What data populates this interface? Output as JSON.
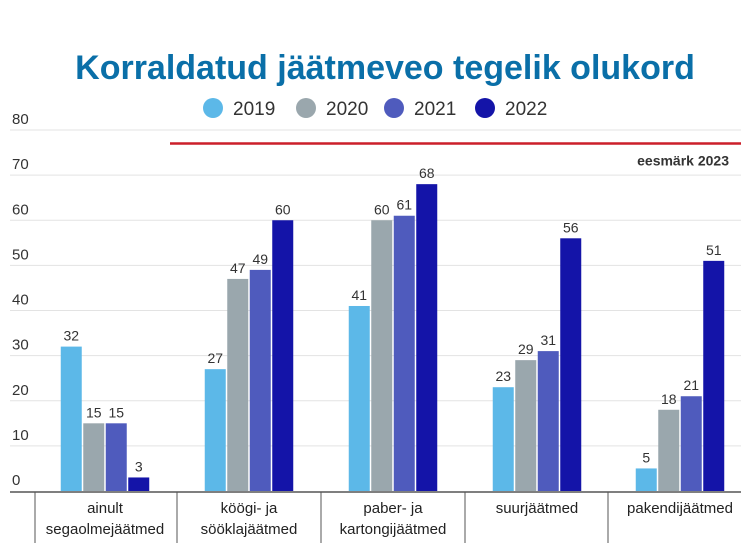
{
  "chart_data": {
    "type": "bar",
    "title": "Korraldatud jäätmeveo tegelik olukord",
    "categories": [
      [
        "ainult",
        "segaolmejäätmed"
      ],
      [
        "köögi- ja",
        "sööklajäätmed"
      ],
      [
        "paber- ja",
        "kartongijäätmed"
      ],
      [
        "suurjäätmed"
      ],
      [
        "pakendijäätmed"
      ]
    ],
    "series": [
      {
        "name": "2019",
        "color": "#5cb8e8",
        "values": [
          32,
          27,
          41,
          23,
          5
        ]
      },
      {
        "name": "2020",
        "color": "#9aa7ad",
        "values": [
          15,
          47,
          60,
          29,
          18
        ]
      },
      {
        "name": "2021",
        "color": "#4f5bbd",
        "values": [
          15,
          49,
          61,
          31,
          21
        ]
      },
      {
        "name": "2022",
        "color": "#1414a8",
        "values": [
          3,
          60,
          68,
          56,
          51
        ]
      }
    ],
    "ylim": [
      0,
      80
    ],
    "yticks": [
      0,
      10,
      20,
      30,
      40,
      50,
      60,
      70,
      80
    ],
    "grid": true,
    "legend": "top-center",
    "target": {
      "value": 77,
      "label": "eesmärk 2023",
      "color": "#cc1f2a"
    }
  }
}
